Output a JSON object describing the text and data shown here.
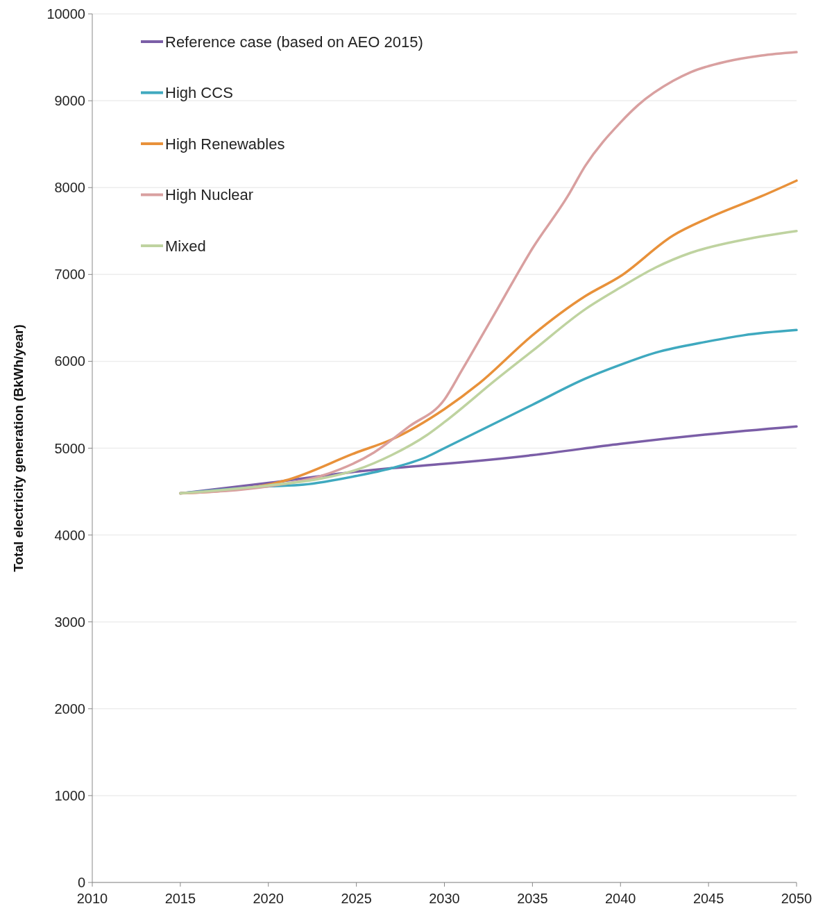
{
  "chart_data": {
    "type": "line",
    "ylabel": "Total electricity generation (BkWh/year)",
    "xlim": [
      2010,
      2050
    ],
    "xticks": [
      2010,
      2015,
      2020,
      2025,
      2030,
      2035,
      2040,
      2045,
      2050
    ],
    "ylim": [
      0,
      10000
    ],
    "yticks": [
      0,
      1000,
      2000,
      3000,
      4000,
      5000,
      6000,
      7000,
      8000,
      9000,
      10000
    ],
    "grid": "y",
    "legend": "top left",
    "series": [
      {
        "name": "Reference case (based on AEO 2015)",
        "color": "#7b5ea7",
        "x": [
          2015,
          2020,
          2025,
          2027,
          2030,
          2035,
          2040,
          2045,
          2050
        ],
        "values": [
          4480,
          4600,
          4730,
          4770,
          4820,
          4920,
          5050,
          5160,
          5250
        ]
      },
      {
        "name": "High CCS",
        "color": "#3fa9bf",
        "x": [
          2015,
          2020,
          2022,
          2025,
          2027,
          2029,
          2030,
          2032,
          2035,
          2038,
          2040,
          2042,
          2045,
          2047,
          2050
        ],
        "values": [
          4480,
          4560,
          4580,
          4680,
          4770,
          4900,
          5000,
          5200,
          5500,
          5800,
          5960,
          6100,
          6230,
          6300,
          6360
        ]
      },
      {
        "name": "High Renewables",
        "color": "#e8913a",
        "x": [
          2015,
          2020,
          2021,
          2025,
          2027,
          2030,
          2032,
          2035,
          2038,
          2040,
          2043,
          2045,
          2048,
          2050
        ],
        "values": [
          4480,
          4580,
          4630,
          4950,
          5100,
          5450,
          5750,
          6300,
          6750,
          6980,
          7450,
          7650,
          7900,
          8080
        ]
      },
      {
        "name": "High Nuclear",
        "color": "#d9a0a0",
        "x": [
          2015,
          2020,
          2023,
          2026,
          2028,
          2030,
          2031,
          2033,
          2035,
          2037,
          2038,
          2040,
          2041,
          2043,
          2044,
          2046,
          2048,
          2050
        ],
        "values": [
          4480,
          4560,
          4680,
          4950,
          5250,
          5560,
          5900,
          6600,
          7300,
          7900,
          8250,
          8750,
          8950,
          9230,
          9330,
          9450,
          9520,
          9560
        ]
      },
      {
        "name": "Mixed",
        "color": "#bfd3a0",
        "x": [
          2015,
          2020,
          2023,
          2025,
          2027,
          2029,
          2030,
          2033,
          2035,
          2038,
          2040,
          2042,
          2044,
          2047,
          2050
        ],
        "values": [
          4480,
          4570,
          4650,
          4750,
          4920,
          5150,
          5300,
          5800,
          6120,
          6600,
          6850,
          7080,
          7250,
          7400,
          7500
        ]
      }
    ]
  }
}
